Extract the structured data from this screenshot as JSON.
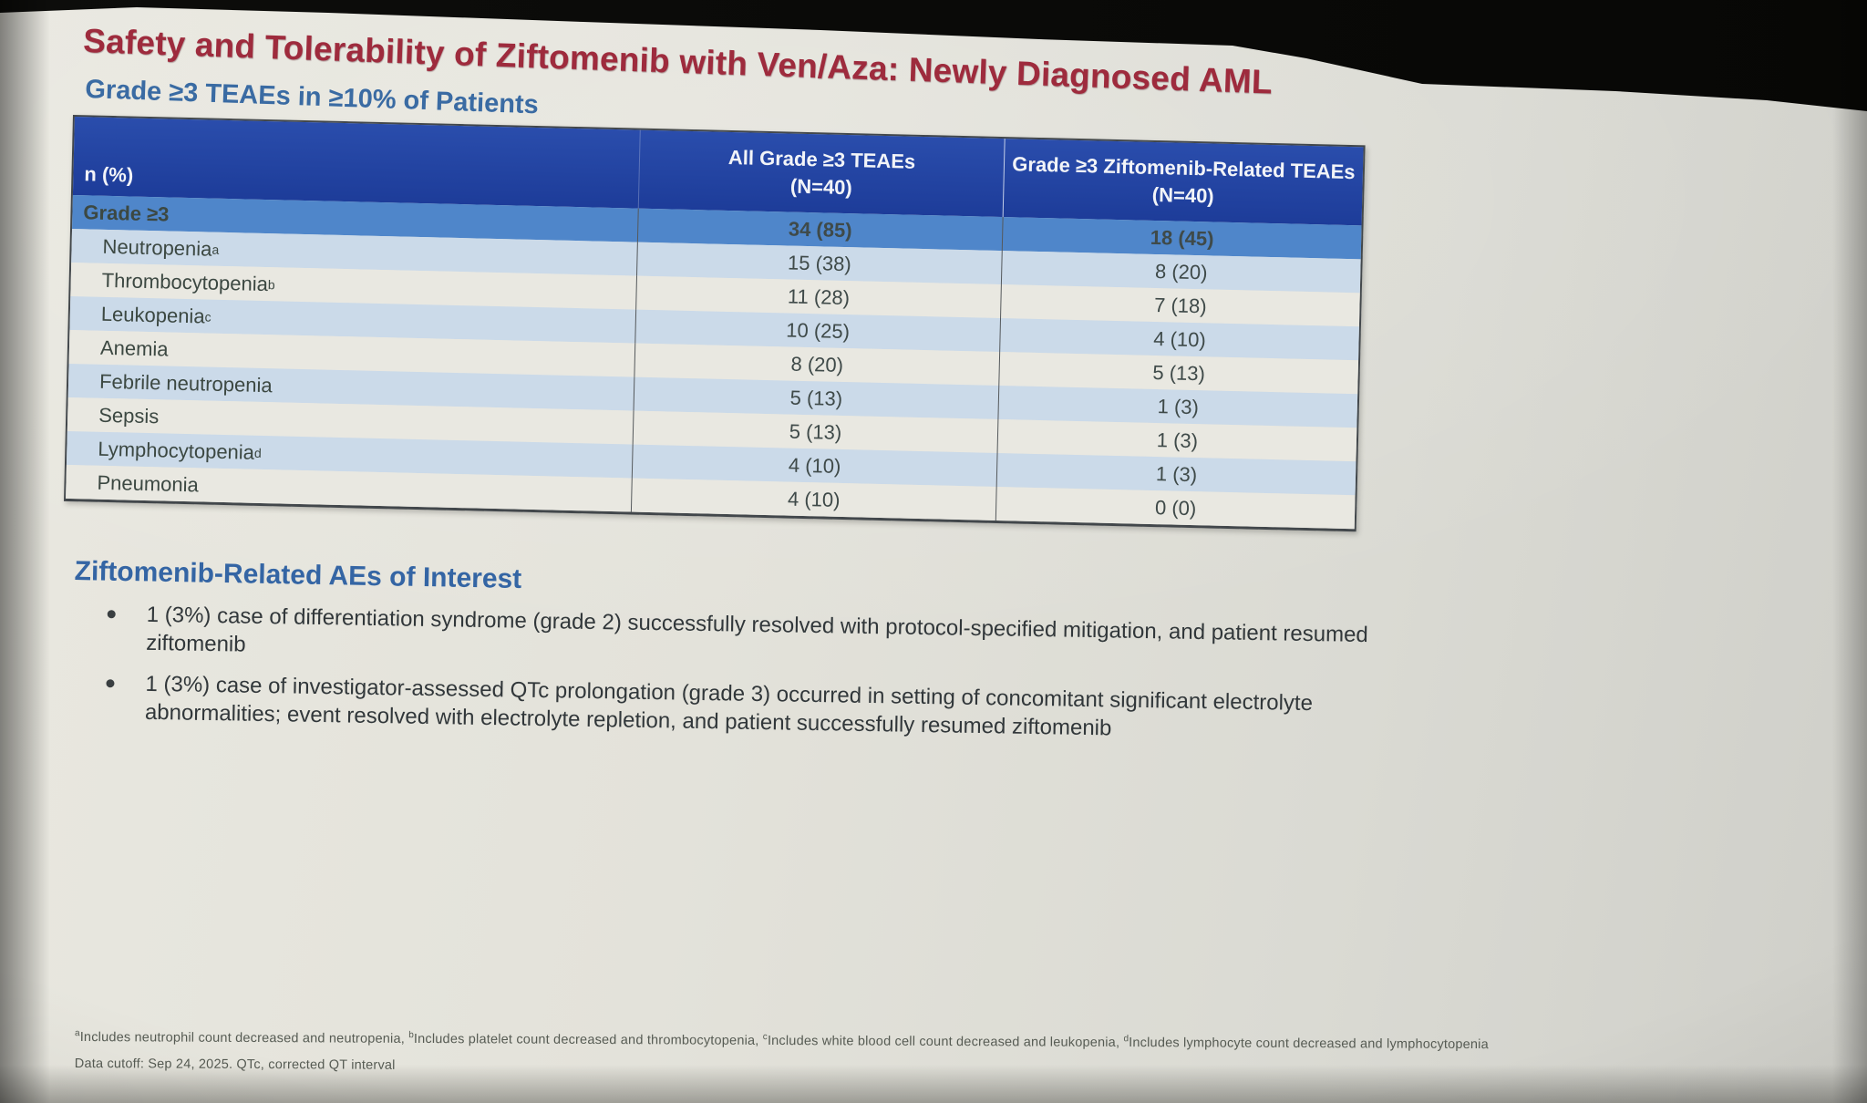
{
  "colors": {
    "title_red": "#9e2b3d",
    "section_heading_blue": "#3465a4",
    "table_header_bg": "#2143a0",
    "summary_row_bg": "#4f86ca",
    "stripe_blue": "#cbdae9",
    "stripe_light": "#e9e8e1"
  },
  "slide": {
    "title": "Safety and Tolerability of Ziftomenib with Ven/Aza: Newly Diagnosed AML",
    "subtitle": "Grade ≥3 TEAEs in ≥10% of Patients",
    "table": {
      "corner_header": "n (%)",
      "columns": [
        {
          "title": "All Grade ≥3 TEAEs",
          "subtitle": "(N=40)"
        },
        {
          "title": "Grade ≥3 Ziftomenib-Related TEAEs",
          "subtitle": "(N=40)"
        }
      ],
      "summary_row": {
        "label": "Grade ≥3",
        "all_teaes": "34 (85)",
        "zifto_related": "18 (45)"
      },
      "rows": [
        {
          "label": "Neutropenia",
          "sup": "a",
          "all_teaes": "15 (38)",
          "zifto_related": "8 (20)"
        },
        {
          "label": "Thrombocytopenia",
          "sup": "b",
          "all_teaes": "11 (28)",
          "zifto_related": "7 (18)"
        },
        {
          "label": "Leukopenia",
          "sup": "c",
          "all_teaes": "10 (25)",
          "zifto_related": "4 (10)"
        },
        {
          "label": "Anemia",
          "sup": "",
          "all_teaes": "8 (20)",
          "zifto_related": "5 (13)"
        },
        {
          "label": "Febrile neutropenia",
          "sup": "",
          "all_teaes": "5 (13)",
          "zifto_related": "1 (3)"
        },
        {
          "label": "Sepsis",
          "sup": "",
          "all_teaes": "5 (13)",
          "zifto_related": "1 (3)"
        },
        {
          "label": "Lymphocytopenia",
          "sup": "d",
          "all_teaes": "4 (10)",
          "zifto_related": "1 (3)"
        },
        {
          "label": "Pneumonia",
          "sup": "",
          "all_teaes": "4 (10)",
          "zifto_related": "0 (0)"
        }
      ]
    },
    "aes_section": {
      "heading": "Ziftomenib-Related AEs of Interest",
      "bullets": [
        {
          "text": "1 (3%) case of differentiation syndrome (grade 2) successfully resolved with protocol-specified mitigation, and patient resumed ziftomenib"
        },
        {
          "text": "1 (3%) case of investigator-assessed QTc prolongation (grade 3) occurred in setting of concomitant significant electrolyte abnormalities; event resolved with electrolyte repletion, and patient successfully resumed ziftomenib"
        }
      ]
    },
    "footnotes": {
      "definitions": [
        {
          "sup": "a",
          "text": "Includes neutrophil count decreased and neutropenia, "
        },
        {
          "sup": "b",
          "text": "Includes platelet count decreased and thrombocytopenia, "
        },
        {
          "sup": "c",
          "text": "Includes white blood cell count decreased and leukopenia, "
        },
        {
          "sup": "d",
          "text": "Includes lymphocyte count decreased and lymphocytopenia"
        }
      ],
      "cutoff_line": "Data cutoff: Sep 24, 2025. QTc, corrected QT interval"
    }
  }
}
